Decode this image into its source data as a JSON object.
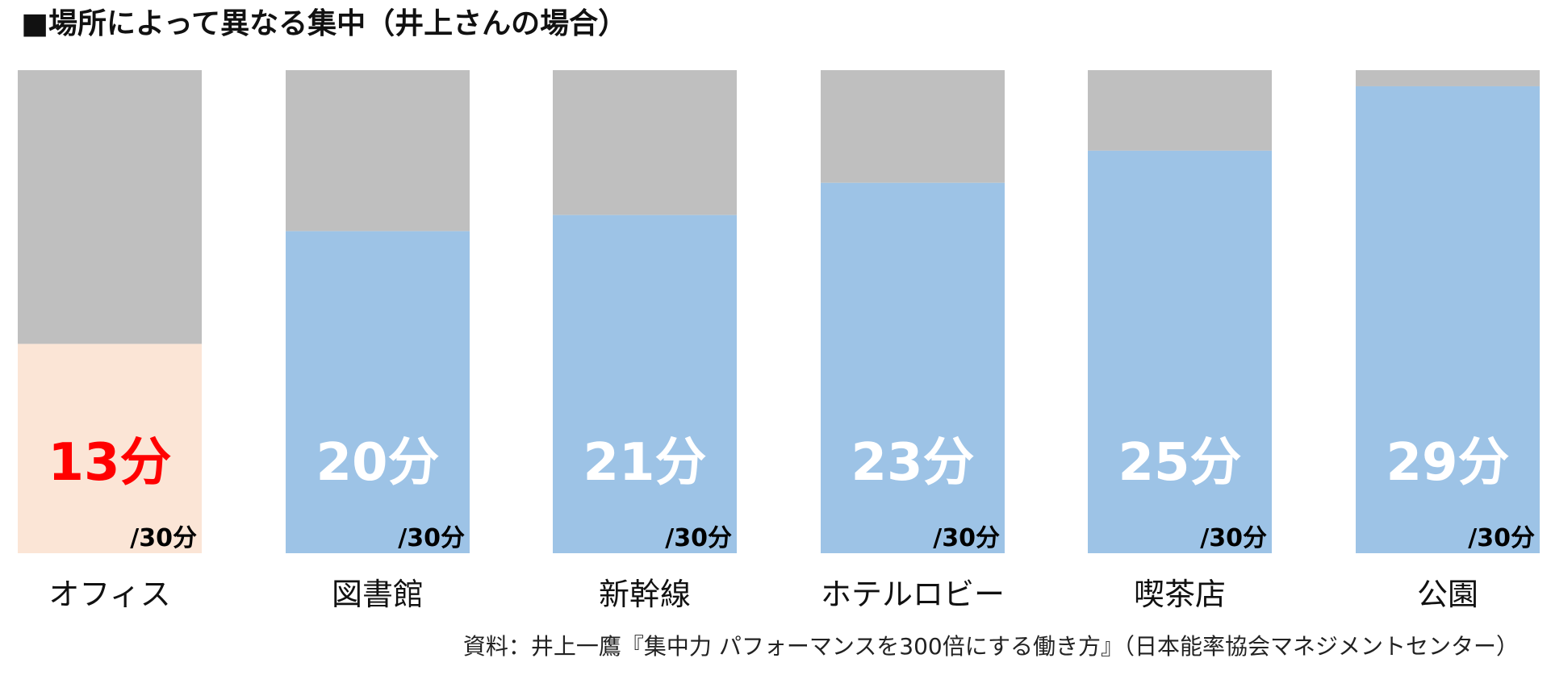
{
  "title": "■場所によって異なる集中（井上さんの場合）",
  "source": "資料：井上一鷹『集中力 パフォーマンスを300倍にする働き方』（日本能率協会マネジメントセンター）",
  "colors": {
    "remainder": "#bfbfbf",
    "focus": "#9dc3e6",
    "highlight_fill": "#fbe5d6",
    "highlight_text": "#ff0000",
    "value_text": "#ffffff",
    "total_text": "#000000",
    "category_text": "#111111"
  },
  "chart_data": {
    "type": "bar",
    "stacked": true,
    "categories": [
      "オフィス",
      "図書館",
      "新幹線",
      "ホテルロビー",
      "喫茶店",
      "公園"
    ],
    "values": [
      13,
      20,
      21,
      23,
      25,
      29
    ],
    "total": 30,
    "value_labels": [
      "13分",
      "20分",
      "21分",
      "23分",
      "25分",
      "29分"
    ],
    "total_label": "/30分",
    "highlight_index": 0,
    "ylim": [
      0,
      30
    ]
  }
}
